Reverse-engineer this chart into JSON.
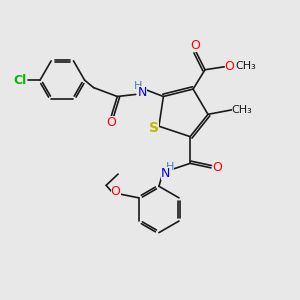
{
  "background_color": "#e8e8e8",
  "bond_color": "#1a1a1a",
  "atoms": {
    "Cl": {
      "color": "#00bb00"
    },
    "S": {
      "color": "#bbbb00"
    },
    "O": {
      "color": "#ff0000"
    },
    "N": {
      "color": "#0000ee"
    },
    "H": {
      "color": "#4488aa"
    },
    "C": {
      "color": "#1a1a1a"
    }
  },
  "figsize": [
    3.0,
    3.0
  ],
  "dpi": 100
}
